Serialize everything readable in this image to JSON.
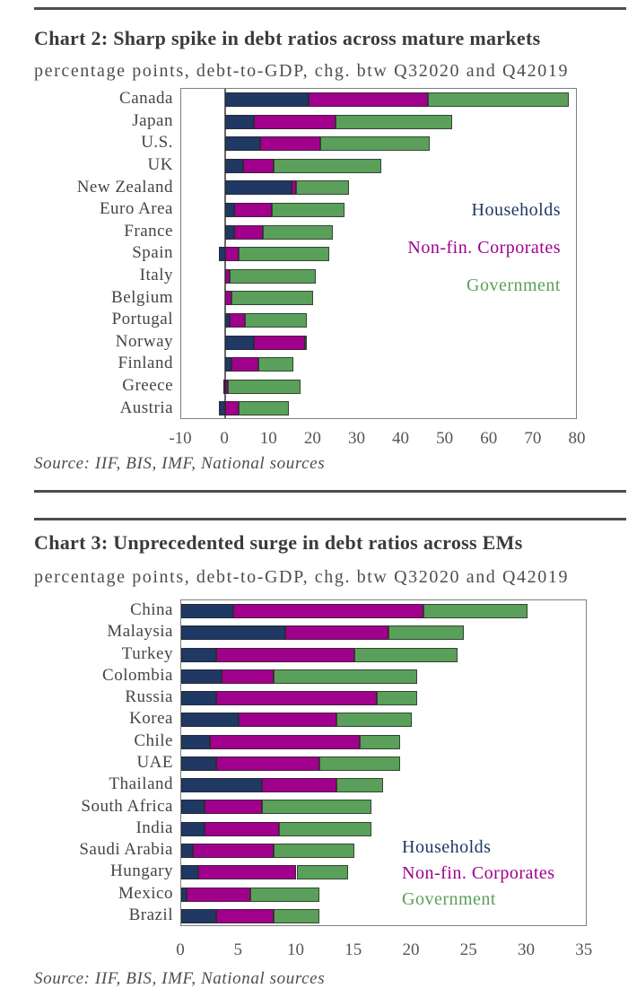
{
  "chart_data": [
    {
      "type": "bar",
      "orientation": "horizontal",
      "stacked": true,
      "title": "Chart 2: Sharp spike in debt ratios across mature markets",
      "subtitle": "percentage points, debt-to-GDP, chg. btw Q32020 and Q42019",
      "source": "Source: IIF, BIS, IMF, National sources",
      "xlim": [
        -10,
        80
      ],
      "xticks": [
        -10,
        0,
        10,
        20,
        30,
        40,
        50,
        60,
        70,
        80
      ],
      "grid": false,
      "legend_position": "inside-right",
      "categories": [
        "Canada",
        "Japan",
        "U.S.",
        "UK",
        "New Zealand",
        "Euro Area",
        "France",
        "Spain",
        "Italy",
        "Belgium",
        "Portugal",
        "Norway",
        "Finland",
        "Greece",
        "Austria"
      ],
      "series": [
        {
          "name": "Households",
          "color": "#1F3864",
          "values": [
            19,
            6.5,
            8,
            4,
            15,
            2,
            2,
            -1.5,
            0,
            0,
            1,
            6.5,
            1.5,
            -0.5,
            -1.5
          ]
        },
        {
          "name": "Non-fin. Corporates",
          "color": "#A0008C",
          "values": [
            27,
            18.5,
            13.5,
            7,
            1,
            8.5,
            6.5,
            3,
            1,
            1.5,
            3.5,
            11.5,
            6,
            0.5,
            3
          ]
        },
        {
          "name": "Government",
          "color": "#5AA05A",
          "values": [
            32,
            26.5,
            25,
            24.5,
            12,
            16.5,
            16,
            20.5,
            19.5,
            18.5,
            14,
            0.5,
            8,
            16.5,
            11.5
          ]
        }
      ]
    },
    {
      "type": "bar",
      "orientation": "horizontal",
      "stacked": true,
      "title": "Chart 3: Unprecedented surge in debt ratios across EMs",
      "subtitle": "percentage points, debt-to-GDP, chg. btw Q32020 and Q42019",
      "source": "Source: IIF, BIS, IMF, National sources",
      "xlim": [
        0,
        35
      ],
      "xticks": [
        0,
        5,
        10,
        15,
        20,
        25,
        30,
        35
      ],
      "grid": false,
      "legend_position": "inside-bottom-right",
      "categories": [
        "China",
        "Malaysia",
        "Turkey",
        "Colombia",
        "Russia",
        "Korea",
        "Chile",
        "UAE",
        "Thailand",
        "South Africa",
        "India",
        "Saudi Arabia",
        "Hungary",
        "Mexico",
        "Brazil"
      ],
      "series": [
        {
          "name": "Households",
          "color": "#1F3864",
          "values": [
            4.5,
            9,
            3,
            3.5,
            3,
            5,
            2.5,
            3,
            7,
            2,
            2,
            1,
            1.5,
            0.5,
            3
          ]
        },
        {
          "name": "Non-fin. Corporates",
          "color": "#A0008C",
          "values": [
            16.5,
            9,
            12,
            4.5,
            14,
            8.5,
            13,
            9,
            6.5,
            5,
            6.5,
            7,
            8.5,
            5.5,
            5
          ]
        },
        {
          "name": "Government",
          "color": "#5AA05A",
          "values": [
            9,
            6.5,
            9,
            12.5,
            3.5,
            6.5,
            3.5,
            7,
            4,
            9.5,
            8,
            7,
            4.5,
            6,
            4
          ]
        }
      ]
    }
  ]
}
